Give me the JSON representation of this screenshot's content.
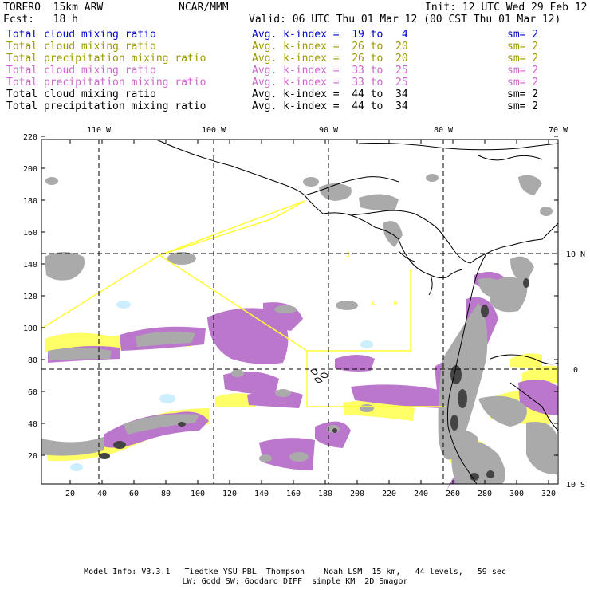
{
  "header": {
    "title": "TORERO  15km ARW",
    "org": "NCAR/MMM",
    "init": "Init: 12 UTC Wed 29 Feb 12",
    "fcst": "Fcst:   18 h",
    "valid": "Valid: 06 UTC Thu 01 Mar 12 (00 CST Thu 01 Mar 12)"
  },
  "legend": [
    {
      "field": "Total cloud mixing ratio",
      "kindex": "Avg. k-index =  19 to   4",
      "sm": "sm= 2",
      "color": "#0000cc"
    },
    {
      "field": "Total cloud mixing ratio",
      "kindex": "Avg. k-index =  26 to  20",
      "sm": "sm= 2",
      "color": "#999900"
    },
    {
      "field": "Total precipitation mixing ratio",
      "kindex": "Avg. k-index =  26 to  20",
      "sm": "sm= 2",
      "color": "#999900"
    },
    {
      "field": "Total cloud mixing ratio",
      "kindex": "Avg. k-index =  33 to  25",
      "sm": "sm= 2",
      "color": "#cc66cc"
    },
    {
      "field": "Total precipitation mixing ratio",
      "kindex": "Avg. k-index =  33 to  25",
      "sm": "sm= 2",
      "color": "#cc66cc"
    },
    {
      "field": "Total cloud mixing ratio",
      "kindex": "Avg. k-index =  44 to  34",
      "sm": "sm= 2",
      "color": "#000000"
    },
    {
      "field": "Total precipitation mixing ratio",
      "kindex": "Avg. k-index =  44 to  34",
      "sm": "sm= 2",
      "color": "#000000"
    }
  ],
  "map": {
    "lon_labels": [
      "110 W",
      "100 W",
      "90 W",
      "80 W",
      "70 W"
    ],
    "lat_labels": [
      "10 N",
      "0",
      "10 S"
    ],
    "x_ticks": [
      "20",
      "40",
      "60",
      "80",
      "100",
      "120",
      "140",
      "160",
      "180",
      "200",
      "220",
      "240",
      "260",
      "280",
      "300",
      "320"
    ],
    "y_ticks": [
      "20",
      "40",
      "60",
      "80",
      "100",
      "120",
      "140",
      "160",
      "180",
      "200",
      "220"
    ],
    "colors": {
      "cloud_light": "#aaaaaa",
      "cloud_dark": "#444444",
      "purple": "#bb77cc",
      "yellow": "#ffff66",
      "lightblue": "#cceeff",
      "domain_line": "#ffff33"
    }
  },
  "footer": {
    "line1": "Model Info: V3.3.1   Tiedtke YSU PBL  Thompson    Noah LSM  15 km,   44 levels,   59 sec",
    "line2": "LW: Godd SW: Goddard DIFF  simple KM  2D Smagor"
  }
}
